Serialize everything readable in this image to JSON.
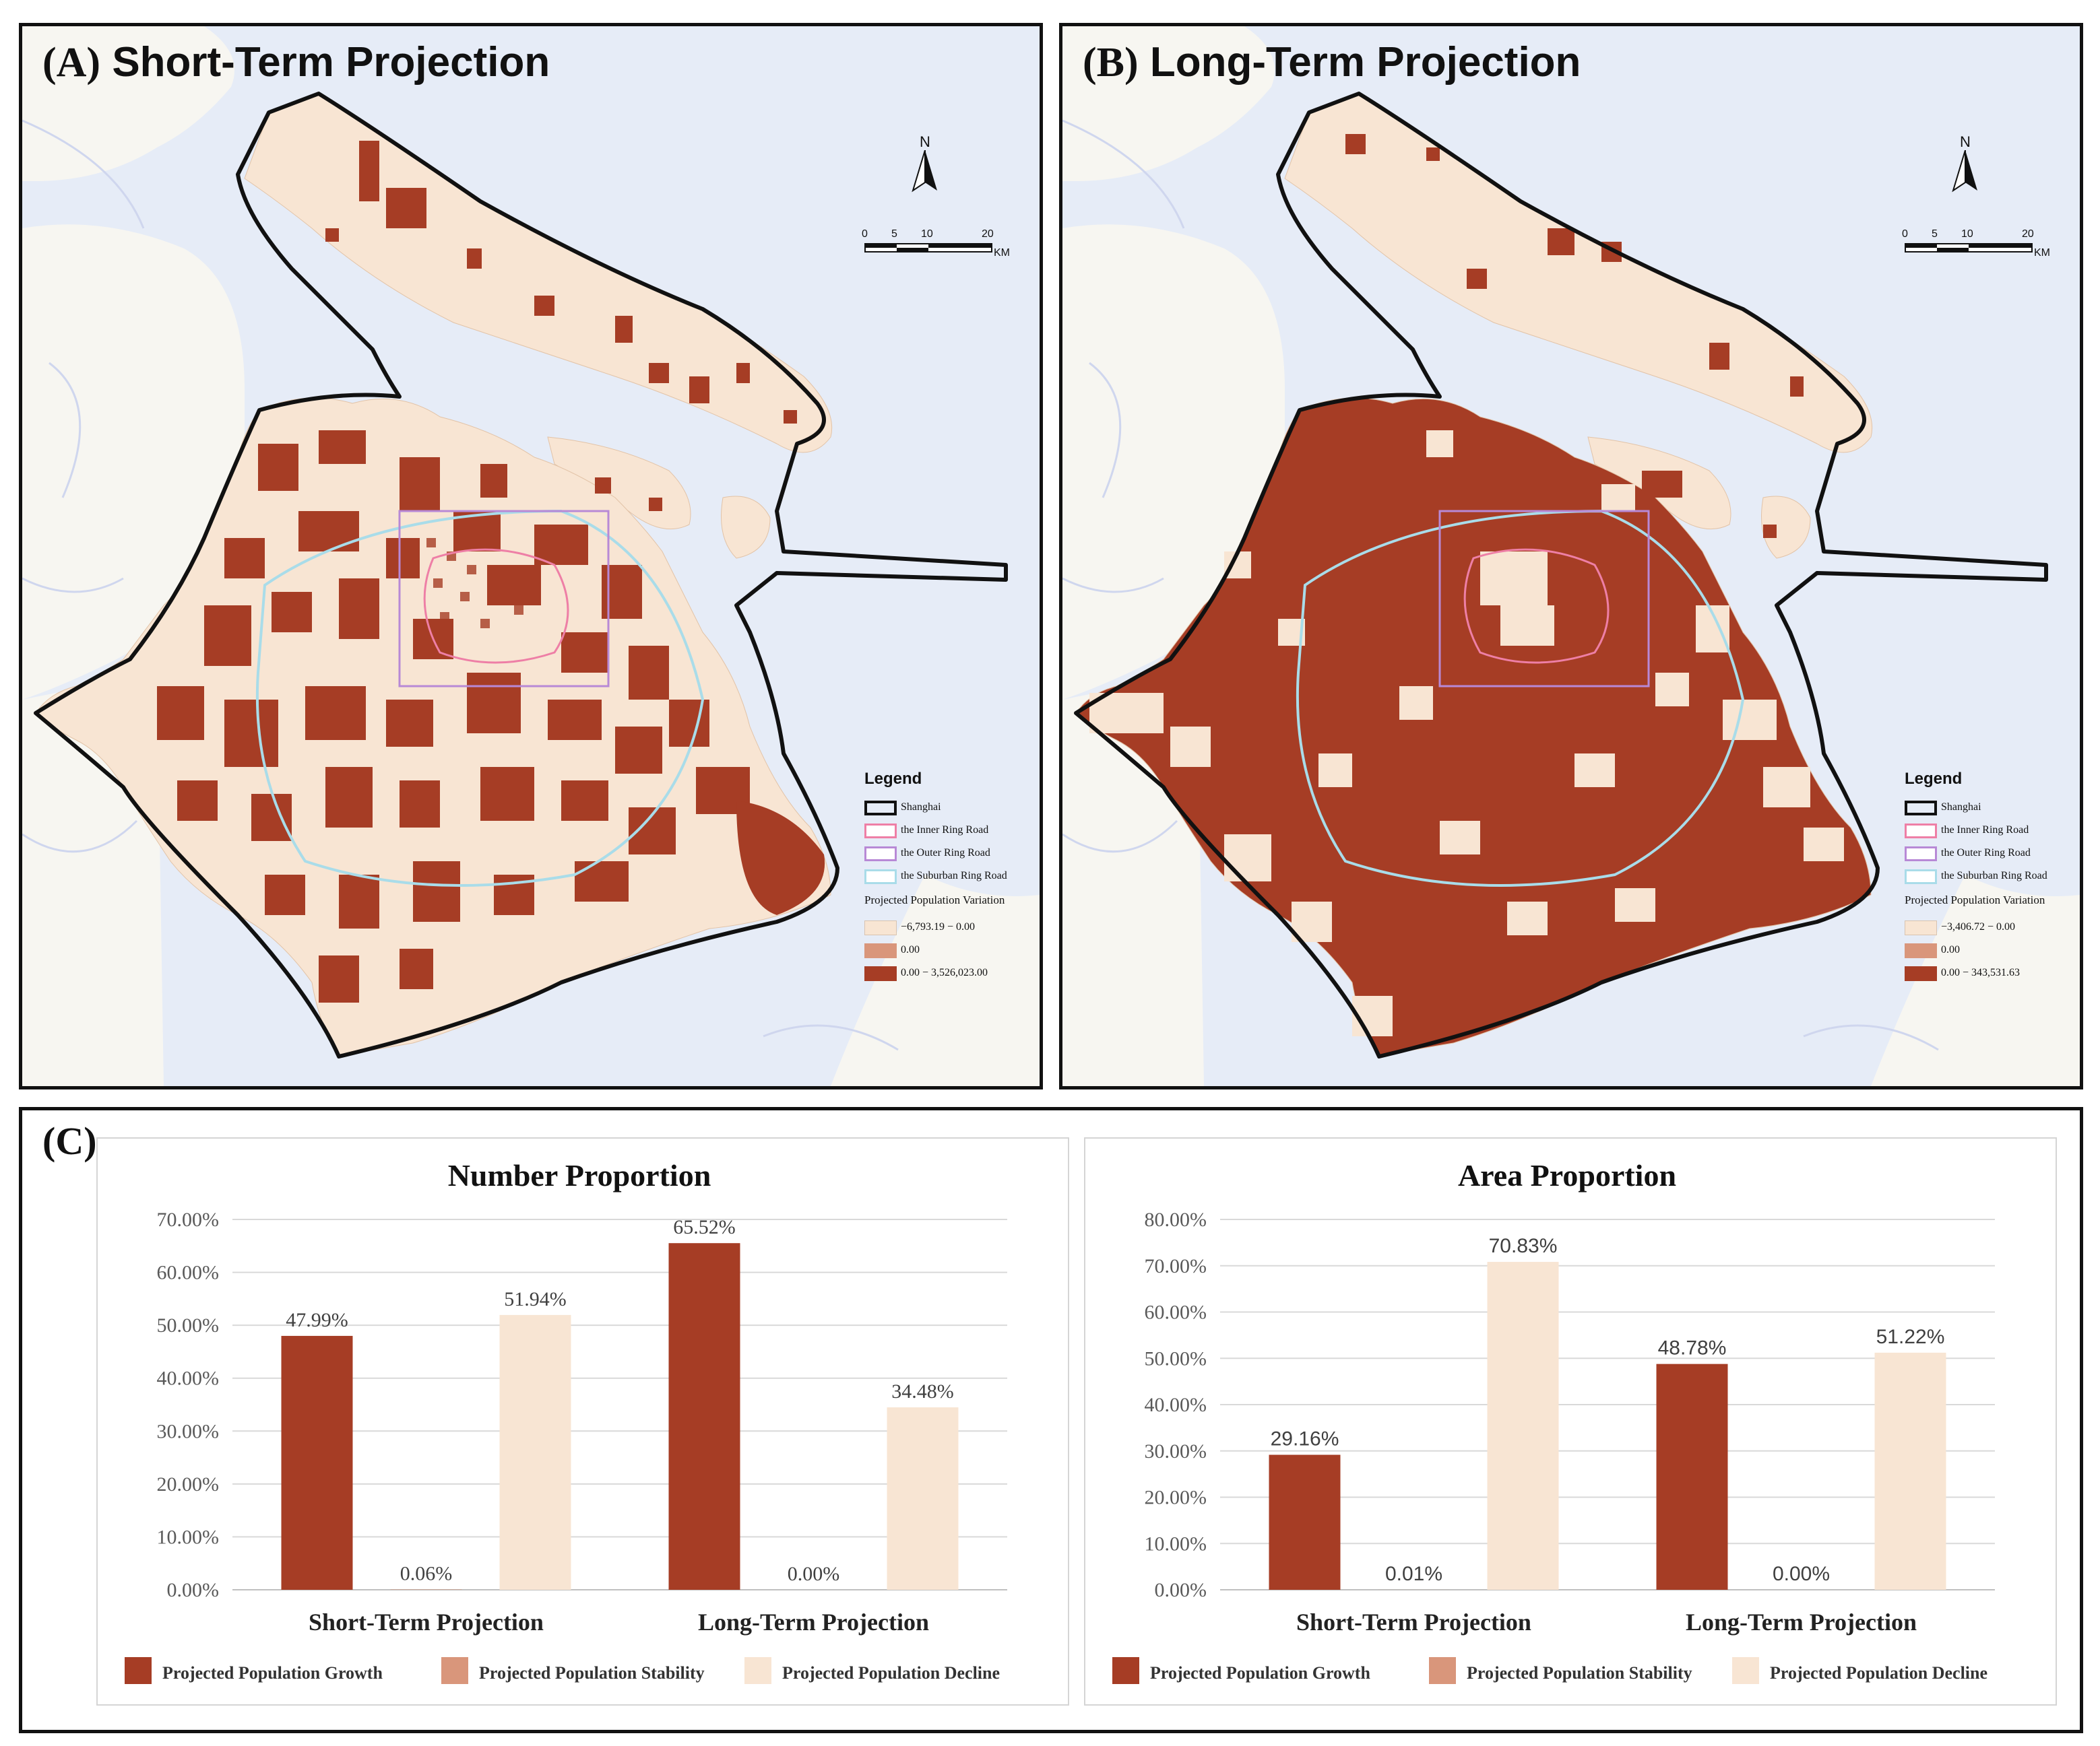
{
  "panels": {
    "a": {
      "letter": "(A)",
      "title": "Short-Term Projection"
    },
    "b": {
      "letter": "(B)",
      "title": "Long-Term Projection"
    },
    "c": {
      "letter": "(C)"
    }
  },
  "map_common": {
    "north_letter": "N",
    "scale_ticks": [
      "0",
      "5",
      "10",
      "20"
    ],
    "scale_unit": "KM",
    "legend_title": "Legend",
    "boundary_label": "Shanghai",
    "inner_ring_label": "the Inner Ring Road",
    "outer_ring_label": "the Outer Ring Road",
    "suburban_ring_label": "the Suburban Ring Road",
    "variation_heading": "Projected Population Variation",
    "stable_label": "0.00"
  },
  "map_a": {
    "decline_range": "−6,793.19 − 0.00",
    "growth_range": "0.00 − 3,526,023.00"
  },
  "map_b": {
    "decline_range": "−3,406.72 − 0.00",
    "growth_range": "0.00 − 343,531.63"
  },
  "colors": {
    "growth": "#a63d25",
    "stability": "#d9967b",
    "decline": "#f8e5d3",
    "water": "#e6ecf7",
    "land_outside": "#f7f6f1",
    "inner_ring": "#ee7fa6",
    "outer_ring": "#b889d6",
    "suburban_ring": "#a9dce9"
  },
  "chart_data": [
    {
      "type": "bar",
      "title": "Number Proportion",
      "categories": [
        "Short-Term Projection",
        "Long-Term Projection"
      ],
      "series": [
        {
          "name": "Projected Population Growth",
          "values": [
            47.99,
            65.52
          ],
          "labels": [
            "47.99%",
            "65.52%"
          ]
        },
        {
          "name": "Projected Population Stability",
          "values": [
            0.06,
            0.0
          ],
          "labels": [
            "0.06%",
            "0.00%"
          ]
        },
        {
          "name": "Projected Population Decline",
          "values": [
            51.94,
            34.48
          ],
          "labels": [
            "51.94%",
            "34.48%"
          ]
        }
      ],
      "ylim": [
        0,
        70
      ],
      "y_ticks": [
        "0.00%",
        "10.00%",
        "20.00%",
        "30.00%",
        "40.00%",
        "50.00%",
        "60.00%",
        "70.00%"
      ],
      "legend_position": "bottom",
      "grid": true
    },
    {
      "type": "bar",
      "title": "Area Proportion",
      "categories": [
        "Short-Term Projection",
        "Long-Term Projection"
      ],
      "series": [
        {
          "name": "Projected Population Growth",
          "values": [
            29.16,
            48.78
          ],
          "labels": [
            "29.16%",
            "48.78%"
          ]
        },
        {
          "name": "Projected Population Stability",
          "values": [
            0.01,
            0.0
          ],
          "labels": [
            "0.01%",
            "0.00%"
          ]
        },
        {
          "name": "Projected Population Decline",
          "values": [
            70.83,
            51.22
          ],
          "labels": [
            "70.83%",
            "51.22%"
          ]
        }
      ],
      "ylim": [
        0,
        80
      ],
      "y_ticks": [
        "0.00%",
        "10.00%",
        "20.00%",
        "30.00%",
        "40.00%",
        "50.00%",
        "60.00%",
        "70.00%",
        "80.00%"
      ],
      "legend_position": "bottom",
      "grid": true
    }
  ]
}
